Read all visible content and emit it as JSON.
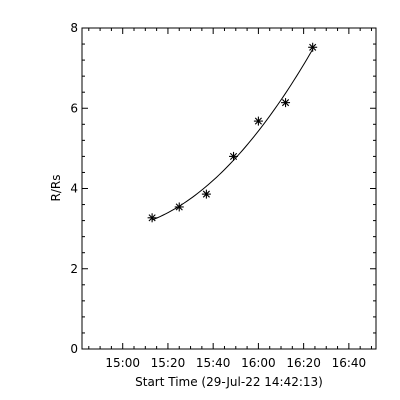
{
  "chart_data": {
    "type": "scatter",
    "xlabel": "Start Time (29-Jul-22 14:42:13)",
    "ylabel": "R/Rs",
    "x_axis": {
      "min": "14:42",
      "max": "16:52",
      "ticks": [
        "15:00",
        "15:20",
        "15:40",
        "16:00",
        "16:20",
        "16:40"
      ],
      "minor_tick_interval_minutes": 5
    },
    "y_axis": {
      "min": 0,
      "max": 8,
      "ticks": [
        "0",
        "2",
        "4",
        "6",
        "8"
      ],
      "minor_tick_interval": 0.4
    },
    "grid": false,
    "marker": "asterisk",
    "color": "#000000",
    "points": [
      {
        "x": "15:13",
        "y": 3.27
      },
      {
        "x": "15:25",
        "y": 3.54
      },
      {
        "x": "15:37",
        "y": 3.86
      },
      {
        "x": "15:49",
        "y": 4.8
      },
      {
        "x": "16:00",
        "y": 5.68
      },
      {
        "x": "16:12",
        "y": 6.14
      },
      {
        "x": "16:24",
        "y": 7.52
      }
    ],
    "fit_curve": {
      "type": "quadratic",
      "x_range": [
        "15:13",
        "16:24"
      ]
    }
  }
}
